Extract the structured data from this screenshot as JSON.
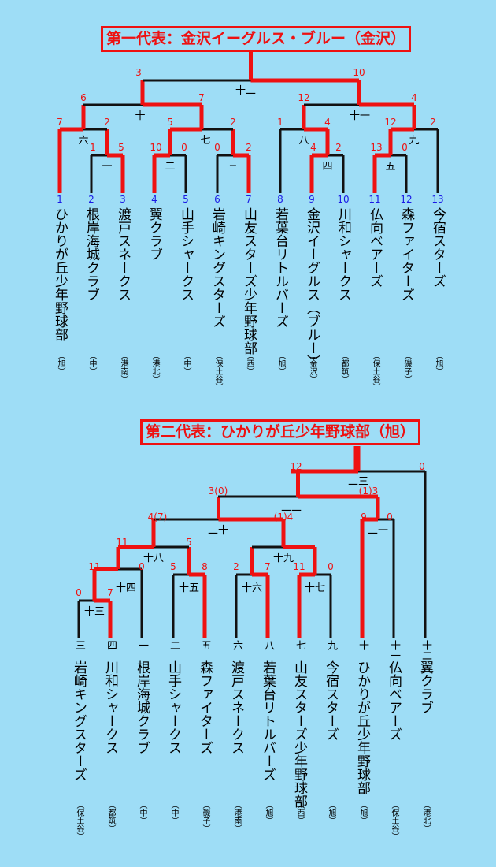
{
  "bracket1": {
    "title": "第一代表：金沢イーグルス・ブルー（金沢）",
    "teams": [
      {
        "seed": "1",
        "name": "ひかりが丘少年野球部",
        "region": "（旭）"
      },
      {
        "seed": "2",
        "name": "根岸海城クラブ",
        "region": "（中）"
      },
      {
        "seed": "3",
        "name": "渡戸スネークス",
        "region": "（港南）"
      },
      {
        "seed": "4",
        "name": "翼クラブ",
        "region": "（港北）"
      },
      {
        "seed": "5",
        "name": "山手シャークス",
        "region": "（中）"
      },
      {
        "seed": "6",
        "name": "岩崎キングスターズ",
        "region": "（保土谷）"
      },
      {
        "seed": "7",
        "name": "山友スターズ少年野球部",
        "region": "（西）"
      },
      {
        "seed": "8",
        "name": "若葉台リトルバーズ",
        "region": "（旭）"
      },
      {
        "seed": "9",
        "name": "金沢イーグルス（ブルー）",
        "region": "（金沢）"
      },
      {
        "seed": "10",
        "name": "川和シャークス",
        "region": "（都筑）"
      },
      {
        "seed": "11",
        "name": "仏向ベアーズ",
        "region": "（保土谷）"
      },
      {
        "seed": "12",
        "name": "森ファイターズ",
        "region": "（磯子）"
      },
      {
        "seed": "13",
        "name": "今宿スターズ",
        "region": "（旭）"
      }
    ],
    "rounds": [
      "一",
      "二",
      "三",
      "四",
      "五",
      "六",
      "七",
      "八",
      "九",
      "十",
      "十一",
      "十二"
    ],
    "scores": [
      "1",
      "5",
      "10",
      "0",
      "0",
      "2",
      "4",
      "2",
      "13",
      "0",
      "7",
      "2",
      "5",
      "2",
      "1",
      "4",
      "12",
      "2",
      "6",
      "7",
      "12",
      "4",
      "3",
      "10"
    ]
  },
  "bracket2": {
    "title": "第二代表：ひかりが丘少年野球部（旭）",
    "teams": [
      {
        "label": "三",
        "name": "岩崎キングスターズ",
        "region": "（保土谷）"
      },
      {
        "label": "四",
        "name": "川和シャークス",
        "region": "（都筑）"
      },
      {
        "label": "一",
        "name": "根岸海城クラブ",
        "region": "（中）"
      },
      {
        "label": "二",
        "name": "山手シャークス",
        "region": "（中）"
      },
      {
        "label": "五",
        "name": "森ファイターズ",
        "region": "（磯子）"
      },
      {
        "label": "六",
        "name": "渡戸スネークス",
        "region": "（港南）"
      },
      {
        "label": "八",
        "name": "若葉台リトルバーズ",
        "region": "（旭）"
      },
      {
        "label": "七",
        "name": "山友スターズ少年野球部",
        "region": "（西）"
      },
      {
        "label": "九",
        "name": "今宿スターズ",
        "region": "（旭）"
      },
      {
        "label": "十",
        "name": "ひかりが丘少年野球部",
        "region": "（旭）"
      },
      {
        "label": "十一",
        "name": "仏向ベアーズ",
        "region": "（保土谷）"
      },
      {
        "label": "十二",
        "name": "翼クラブ",
        "region": "（港北）"
      }
    ],
    "rounds": [
      "十三",
      "十四",
      "十五",
      "十六",
      "十七",
      "十八",
      "十九",
      "二十",
      "二一",
      "二二",
      "二三"
    ],
    "scores": [
      "0",
      "7",
      "11",
      "0",
      "5",
      "8",
      "2",
      "7",
      "11",
      "0",
      "11",
      "5",
      "4(7)",
      "(1)4",
      "3(0)",
      "9",
      "0",
      "(1)3",
      "12",
      "0"
    ]
  },
  "colors": {
    "win": "#EE1111",
    "line": "#111111",
    "seed": "#1a1ae6",
    "background": "#9EDDF6"
  }
}
